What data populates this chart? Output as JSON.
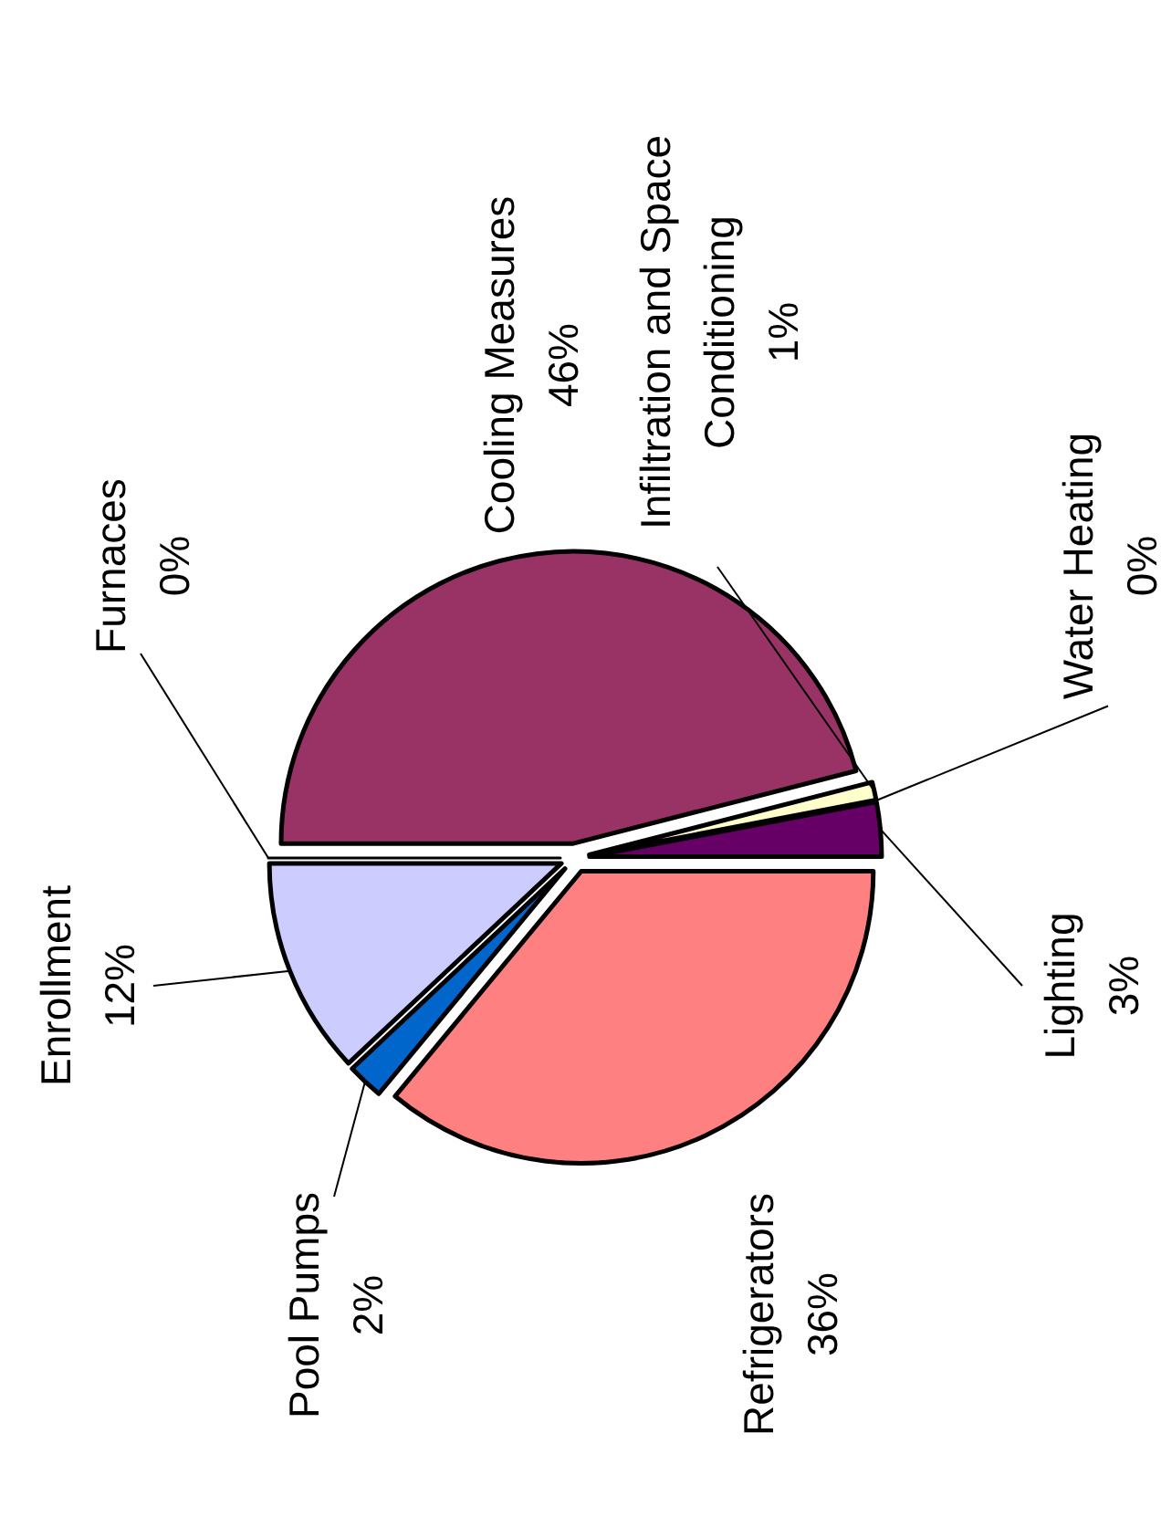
{
  "chart_data": {
    "type": "pie",
    "categories": [
      "Furnaces",
      "Cooling Measures",
      "Infiltration and Space Conditioning",
      "Water Heating",
      "Lighting",
      "Refrigerators",
      "Pool Pumps",
      "Enrollment"
    ],
    "values": [
      0,
      46,
      1,
      0,
      3,
      36,
      2,
      12
    ],
    "colors": [
      "#9999ff",
      "#993366",
      "#ffffcc",
      "#ccffff",
      "#660066",
      "#ff8080",
      "#0066cc",
      "#ccccff"
    ],
    "value_labels": [
      "0%",
      "46%",
      "1%",
      "0%",
      "3%",
      "36%",
      "2%",
      "12%"
    ],
    "legend": false
  }
}
